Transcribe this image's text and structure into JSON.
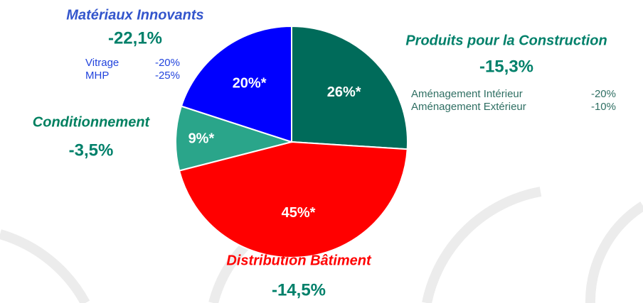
{
  "chart_data": {
    "type": "pie",
    "categories": [
      "Produits pour la Construction",
      "Distribution Bâtiment",
      "Conditionnement",
      "Matériaux Innovants"
    ],
    "values": [
      26,
      45,
      9,
      20
    ],
    "value_labels": [
      "26%*",
      "45%*",
      "9%*",
      "20%*"
    ],
    "colors": [
      "#006b5a",
      "#ff0000",
      "#2aa58a",
      "#0000ff"
    ],
    "changes": [
      "-15,3%",
      "-14,5%",
      "-3,5%",
      "-22,1%"
    ],
    "details": [
      [
        {
          "name": "Aménagement Intérieur",
          "value": "-20%"
        },
        {
          "name": "Aménagement Extérieur",
          "value": "-10%"
        }
      ],
      [],
      [],
      [
        {
          "name": "Vitrage",
          "value": "-20%"
        },
        {
          "name": "MHP",
          "value": "-25%"
        }
      ]
    ]
  }
}
